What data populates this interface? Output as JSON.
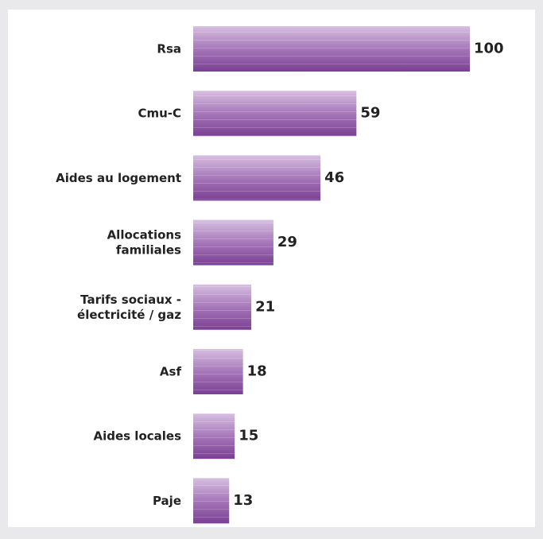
{
  "chart_data": {
    "type": "bar",
    "orientation": "horizontal",
    "categories": [
      "Rsa",
      "Cmu-C",
      "Aides au logement",
      "Allocations\nfamiliales",
      "Tarifs sociaux -\nélectricité / gaz",
      "Asf",
      "Aides locales",
      "Paje"
    ],
    "values": [
      100,
      59,
      46,
      29,
      21,
      18,
      15,
      13
    ],
    "color": "#8b55a3"
  }
}
